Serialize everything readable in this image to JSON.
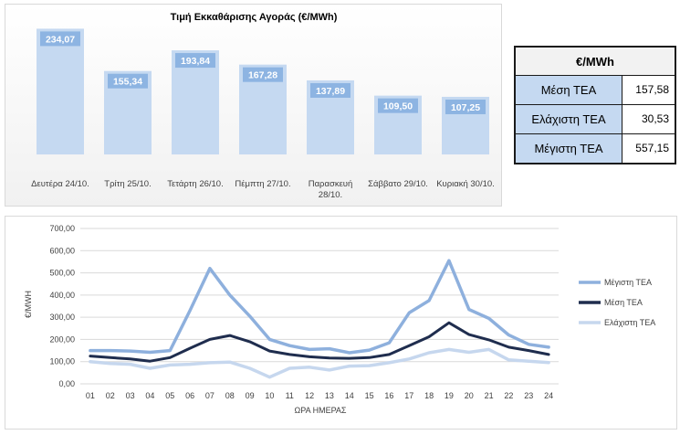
{
  "chart_data": [
    {
      "type": "bar",
      "title": "Τιμή Εκκαθάρισης Αγοράς (€/MWh)",
      "categories": [
        "Δευτέρα 24/10.",
        "Τρίτη 25/10.",
        "Τετάρτη 26/10.",
        "Πέμπτη 27/10.",
        "Παρασκευή 28/10.",
        "Σάββατο 29/10.",
        "Κυριακή 30/10."
      ],
      "values": [
        234.07,
        155.34,
        193.84,
        167.28,
        137.89,
        109.5,
        107.25
      ],
      "value_labels": [
        "234,07",
        "155,34",
        "193,84",
        "167,28",
        "137,89",
        "109,50",
        "107,25"
      ],
      "ylim": [
        0,
        245
      ],
      "colors": {
        "bar": "#c5d9f1",
        "label_box": "#8db4e2"
      }
    },
    {
      "type": "line",
      "xlabel": "ΩΡΑ ΗΜΕΡΑΣ",
      "ylabel": "€/MWH",
      "x": [
        "01",
        "02",
        "03",
        "04",
        "05",
        "06",
        "07",
        "08",
        "09",
        "10",
        "11",
        "12",
        "13",
        "14",
        "15",
        "16",
        "17",
        "18",
        "19",
        "20",
        "21",
        "22",
        "23",
        "24"
      ],
      "yticks": [
        "0,00",
        "100,00",
        "200,00",
        "300,00",
        "400,00",
        "500,00",
        "600,00",
        "700,00"
      ],
      "ylim": [
        0,
        700
      ],
      "grid": true,
      "legend": "right",
      "series": [
        {
          "name": "Μέγιστη ΤΕΑ",
          "color": "#8eb0dd",
          "values": [
            150,
            150,
            148,
            142,
            150,
            330,
            520,
            400,
            305,
            200,
            172,
            155,
            158,
            140,
            152,
            185,
            320,
            375,
            555,
            335,
            295,
            220,
            178,
            165
          ]
        },
        {
          "name": "Μέση ΤΕΑ",
          "color": "#1f2d4e",
          "values": [
            125,
            118,
            112,
            102,
            118,
            160,
            200,
            218,
            190,
            148,
            132,
            122,
            116,
            115,
            118,
            132,
            172,
            212,
            275,
            222,
            198,
            165,
            150,
            132
          ]
        },
        {
          "name": "Ελάχιστη ΤΕΑ",
          "color": "#c6d7ee",
          "values": [
            100,
            92,
            88,
            70,
            85,
            88,
            95,
            98,
            70,
            30,
            70,
            75,
            62,
            80,
            82,
            95,
            112,
            140,
            155,
            142,
            155,
            108,
            102,
            96
          ]
        }
      ]
    }
  ],
  "stats_table": {
    "header": "€/MWh",
    "rows": [
      {
        "label": "Μέση ΤΕΑ",
        "value": "157,58"
      },
      {
        "label": "Ελάχιστη ΤΕΑ",
        "value": "30,53"
      },
      {
        "label": "Μέγιστη ΤΕΑ",
        "value": "557,15"
      }
    ]
  }
}
